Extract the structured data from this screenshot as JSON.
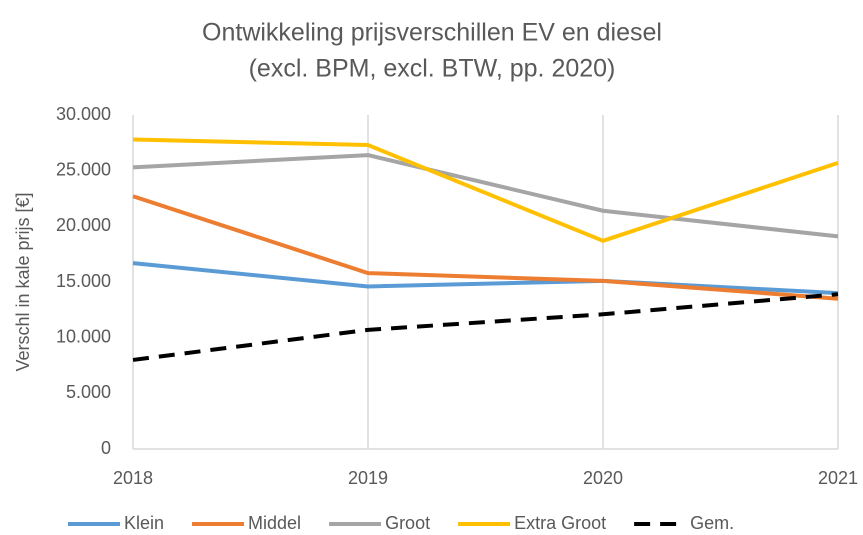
{
  "chart_data": {
    "type": "line",
    "title": "Ontwikkeling prijsverschillen EV en diesel",
    "subtitle": "(excl. BPM, excl. BTW, pp. 2020)",
    "y_label": "Verschl in kale prijs [€]",
    "x": [
      2018,
      2019,
      2020,
      2021
    ],
    "xlim": [
      2018,
      2021
    ],
    "xticks": [
      2018,
      2019,
      2020,
      2021
    ],
    "ylim": [
      0,
      30000
    ],
    "yticks": [
      {
        "value": 0,
        "label": "0"
      },
      {
        "value": 5000,
        "label": "5.000"
      },
      {
        "value": 10000,
        "label": "10.000"
      },
      {
        "value": 15000,
        "label": "15.000"
      },
      {
        "value": 20000,
        "label": "20.000"
      },
      {
        "value": 25000,
        "label": "25.000"
      },
      {
        "value": 30000,
        "label": "30.000"
      }
    ],
    "xgrid": true,
    "ygrid": false,
    "legend": "bottom",
    "series": [
      {
        "name": "Klein",
        "color": "#5b9bd5",
        "values": [
          16700,
          14600,
          15100,
          14000
        ]
      },
      {
        "name": "Middel",
        "color": "#ed7d31",
        "values": [
          22700,
          15800,
          15100,
          13500
        ]
      },
      {
        "name": "Groot",
        "color": "#a5a5a5",
        "values": [
          25300,
          26400,
          21400,
          19100
        ]
      },
      {
        "name": "Extra Groot",
        "color": "#ffc000",
        "values": [
          27800,
          27300,
          18700,
          25700
        ]
      },
      {
        "name": "Gem.",
        "color": "#000000",
        "style": "dashed",
        "values": [
          8000,
          10700,
          12100,
          13900
        ]
      }
    ]
  }
}
